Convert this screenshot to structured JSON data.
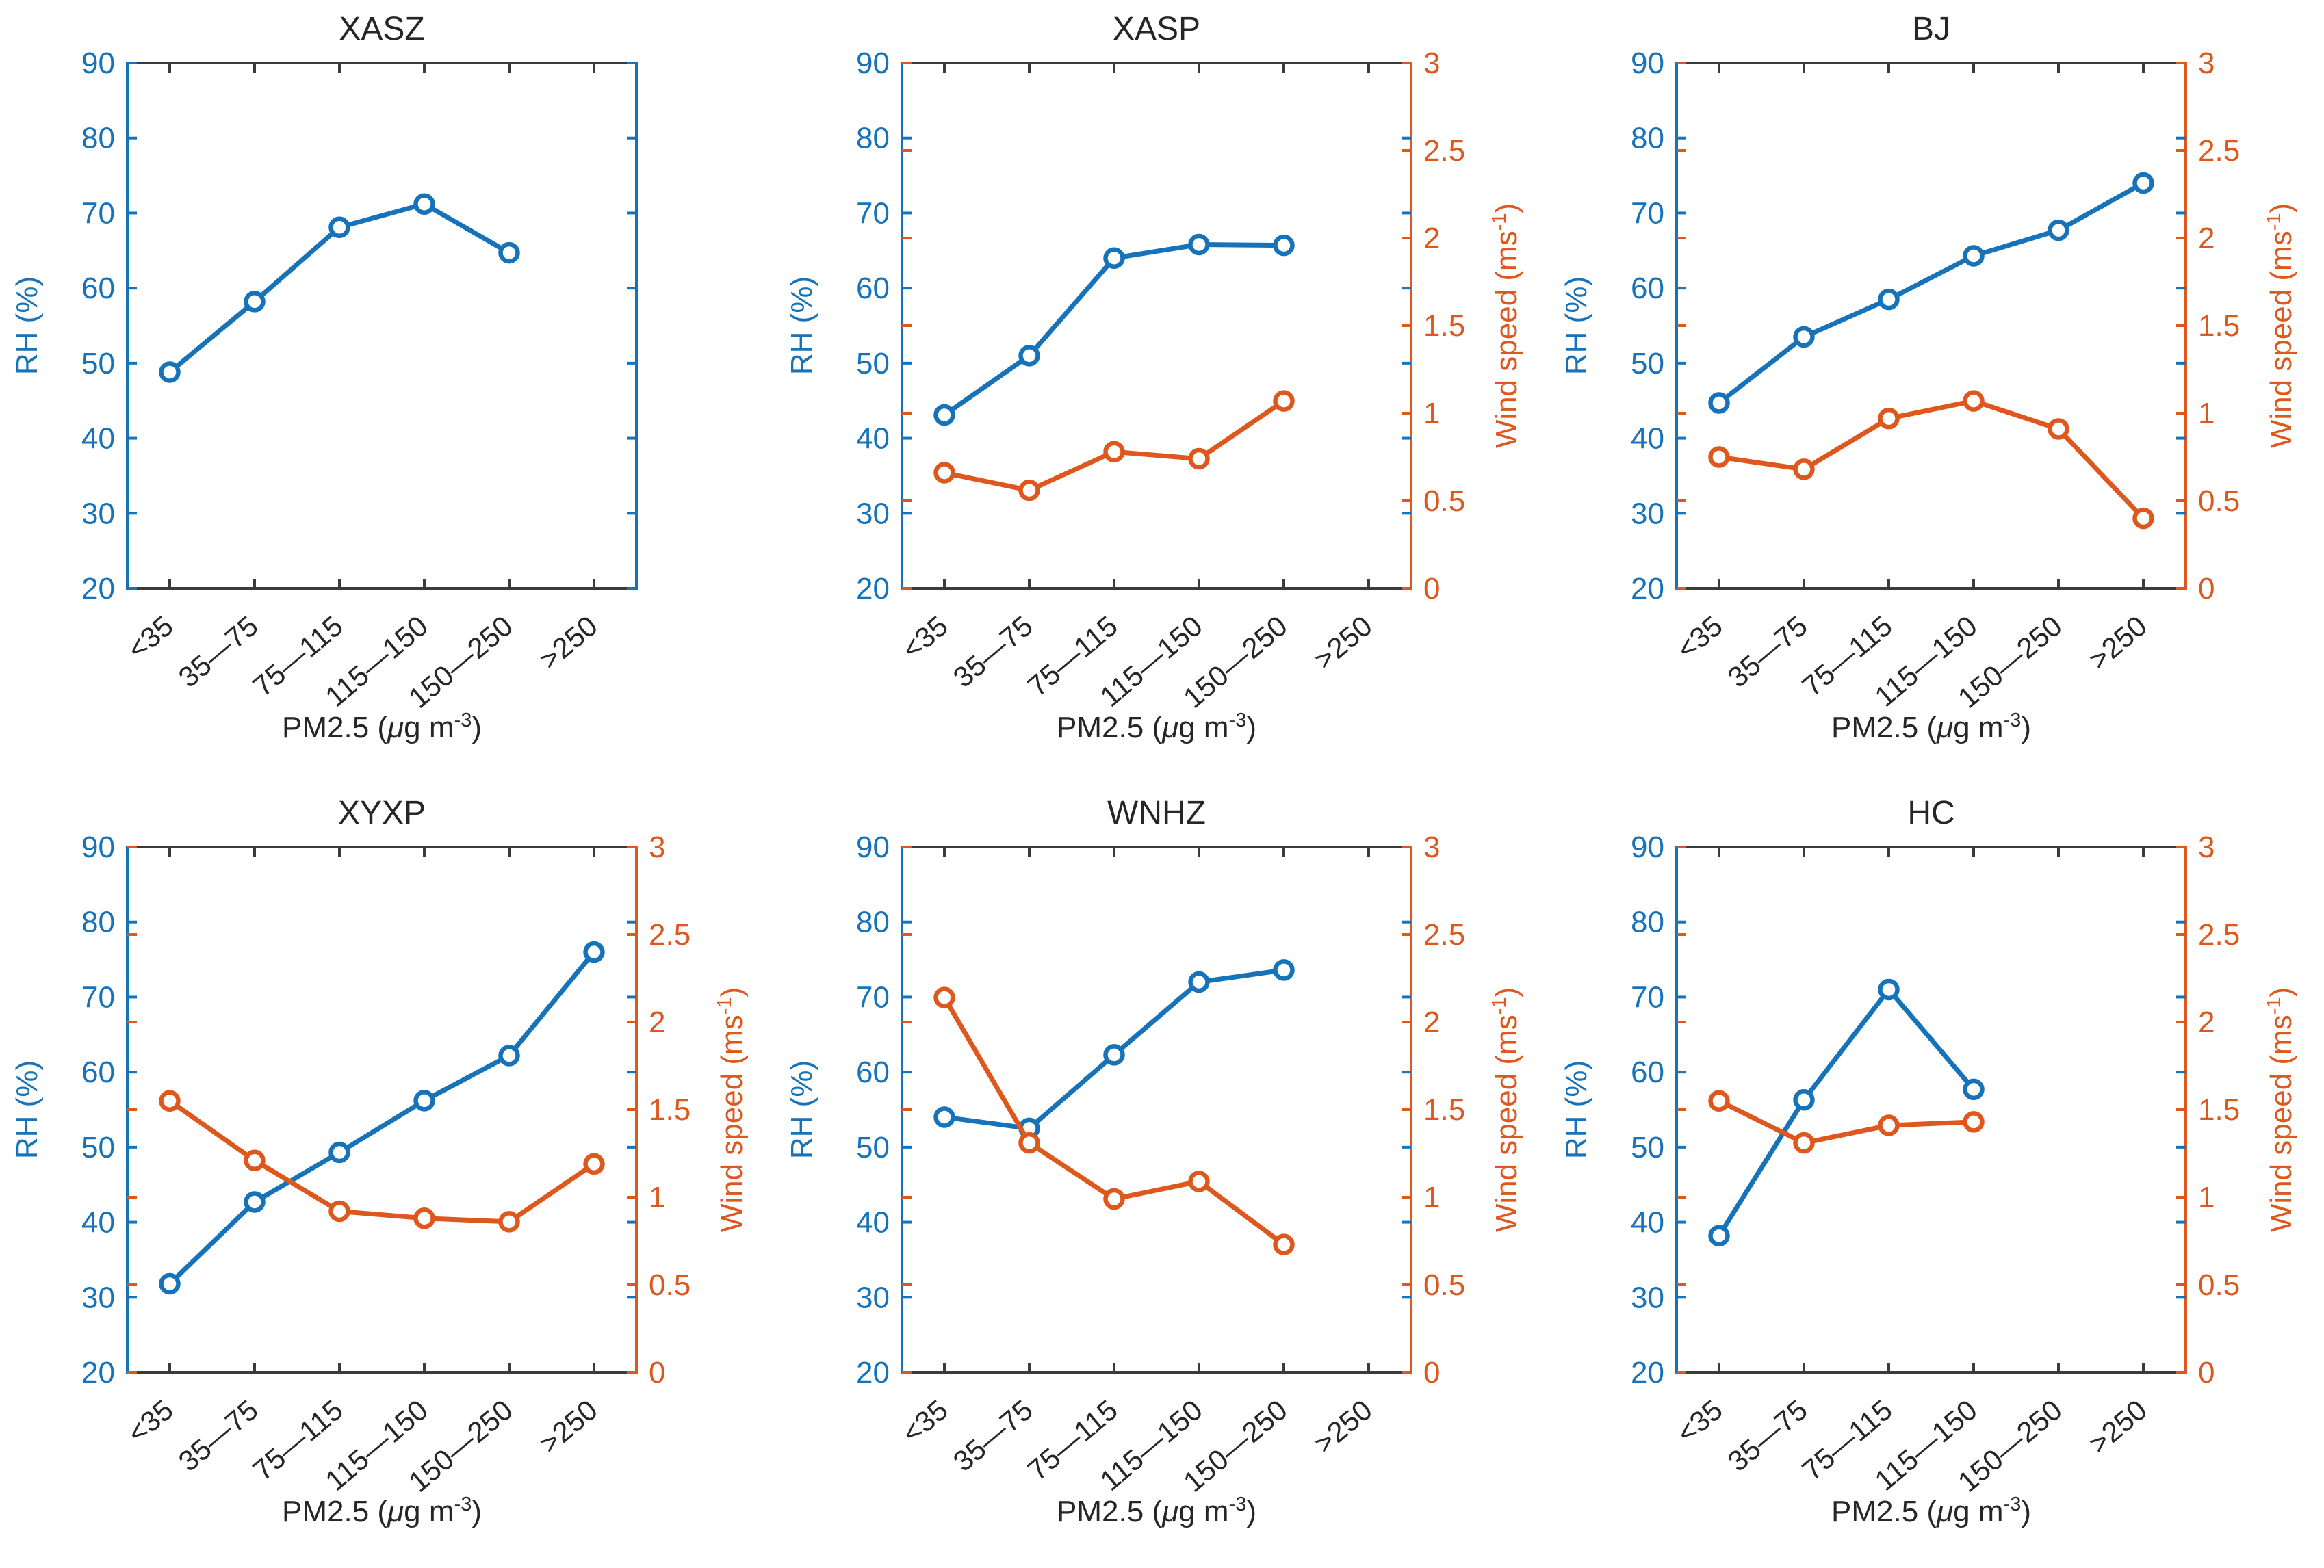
{
  "colors": {
    "rh_blue": "#1673ba",
    "wind_orange": "#de581e",
    "text_dark": "#262626",
    "spine_dark": "#3b3b3b",
    "background": "#ffffff"
  },
  "axis": {
    "left_label": "RH (%)",
    "right_label_text": "Wind speed (ms-1)",
    "right_label_parts": [
      [
        "Wind speed (ms",
        "n"
      ],
      [
        "-1",
        "s"
      ],
      [
        ")",
        "n"
      ]
    ],
    "x_label_text": "PM2.5 (ug m-3)",
    "x_label_parts": [
      [
        "PM2.5 (",
        "n"
      ],
      [
        "μ",
        "i"
      ],
      [
        "g m",
        "n"
      ],
      [
        "-3",
        "s"
      ],
      [
        ")",
        "n"
      ]
    ],
    "left_ticks": [
      20,
      30,
      40,
      50,
      60,
      70,
      80,
      90
    ],
    "right_ticks": [
      0,
      0.5,
      1,
      1.5,
      2,
      2.5,
      3
    ],
    "left_range": [
      20,
      90
    ],
    "right_range": [
      0,
      3
    ]
  },
  "chart_data": [
    {
      "type": "line",
      "title": "XASZ",
      "categories": [
        "<35",
        "35—75",
        "75—115",
        "115—150",
        "150—250",
        ">250"
      ],
      "series": [
        {
          "name": "RH",
          "axis": "left",
          "values": [
            48.8,
            58.2,
            68.1,
            71.2,
            64.7,
            null
          ]
        }
      ],
      "right_axis_labeled": false,
      "xlabel": "PM2.5 (ug m-3)",
      "ylabel_left": "RH (%)",
      "ylabel_right": null,
      "ylim_left": [
        20,
        90
      ],
      "ylim_right": [
        0,
        3
      ],
      "grid": false,
      "legend": null
    },
    {
      "type": "line",
      "title": "XASP",
      "categories": [
        "<35",
        "35—75",
        "75—115",
        "115—150",
        "150—250",
        ">250"
      ],
      "series": [
        {
          "name": "RH",
          "axis": "left",
          "values": [
            43.1,
            51.0,
            64.0,
            65.8,
            65.7,
            null
          ]
        },
        {
          "name": "Wind speed",
          "axis": "right",
          "values": [
            0.66,
            0.56,
            0.78,
            0.74,
            1.07,
            null
          ]
        }
      ],
      "right_axis_labeled": true,
      "xlabel": "PM2.5 (ug m-3)",
      "ylabel_left": "RH (%)",
      "ylabel_right": "Wind speed (ms-1)",
      "ylim_left": [
        20,
        90
      ],
      "ylim_right": [
        0,
        3
      ],
      "grid": false,
      "legend": null
    },
    {
      "type": "line",
      "title": "BJ",
      "categories": [
        "<35",
        "35—75",
        "75—115",
        "115—150",
        "150—250",
        ">250"
      ],
      "series": [
        {
          "name": "RH",
          "axis": "left",
          "values": [
            44.7,
            53.5,
            58.5,
            64.3,
            67.7,
            74.0
          ]
        },
        {
          "name": "Wind speed",
          "axis": "right",
          "values": [
            0.75,
            0.68,
            0.97,
            1.07,
            0.91,
            0.4
          ]
        }
      ],
      "right_axis_labeled": true,
      "xlabel": "PM2.5 (ug m-3)",
      "ylabel_left": "RH (%)",
      "ylabel_right": "Wind speed (ms-1)",
      "ylim_left": [
        20,
        90
      ],
      "ylim_right": [
        0,
        3
      ],
      "grid": false,
      "legend": null
    },
    {
      "type": "line",
      "title": "XYXP",
      "categories": [
        "<35",
        "35—75",
        "75—115",
        "115—150",
        "150—250",
        ">250"
      ],
      "series": [
        {
          "name": "RH",
          "axis": "left",
          "values": [
            31.8,
            42.7,
            49.3,
            56.2,
            62.2,
            76.0
          ]
        },
        {
          "name": "Wind speed",
          "axis": "right",
          "values": [
            1.55,
            1.21,
            0.92,
            0.88,
            0.86,
            1.19
          ]
        }
      ],
      "right_axis_labeled": true,
      "xlabel": "PM2.5 (ug m-3)",
      "ylabel_left": "RH (%)",
      "ylabel_right": "Wind speed (ms-1)",
      "ylim_left": [
        20,
        90
      ],
      "ylim_right": [
        0,
        3
      ],
      "grid": false,
      "legend": null
    },
    {
      "type": "line",
      "title": "WNHZ",
      "categories": [
        "<35",
        "35—75",
        "75—115",
        "115—150",
        "150—250",
        ">250"
      ],
      "series": [
        {
          "name": "RH",
          "axis": "left",
          "values": [
            54.0,
            52.5,
            62.3,
            72.0,
            73.6,
            null
          ]
        },
        {
          "name": "Wind speed",
          "axis": "right",
          "values": [
            2.14,
            1.31,
            0.99,
            1.09,
            0.73,
            null
          ]
        }
      ],
      "right_axis_labeled": true,
      "xlabel": "PM2.5 (ug m-3)",
      "ylabel_left": "RH (%)",
      "ylabel_right": "Wind speed (ms-1)",
      "ylim_left": [
        20,
        90
      ],
      "ylim_right": [
        0,
        3
      ],
      "grid": false,
      "legend": null
    },
    {
      "type": "line",
      "title": "HC",
      "categories": [
        "<35",
        "35—75",
        "75—115",
        "115—150",
        "150—250",
        ">250"
      ],
      "series": [
        {
          "name": "RH",
          "axis": "left",
          "values": [
            38.2,
            56.3,
            71.0,
            57.7,
            null,
            null
          ]
        },
        {
          "name": "Wind speed",
          "axis": "right",
          "values": [
            1.55,
            1.31,
            1.41,
            1.43,
            null,
            null
          ]
        }
      ],
      "right_axis_labeled": true,
      "xlabel": "PM2.5 (ug m-3)",
      "ylabel_left": "RH (%)",
      "ylabel_right": "Wind speed (ms-1)",
      "ylim_left": [
        20,
        90
      ],
      "ylim_right": [
        0,
        3
      ],
      "grid": false,
      "legend": null
    }
  ]
}
